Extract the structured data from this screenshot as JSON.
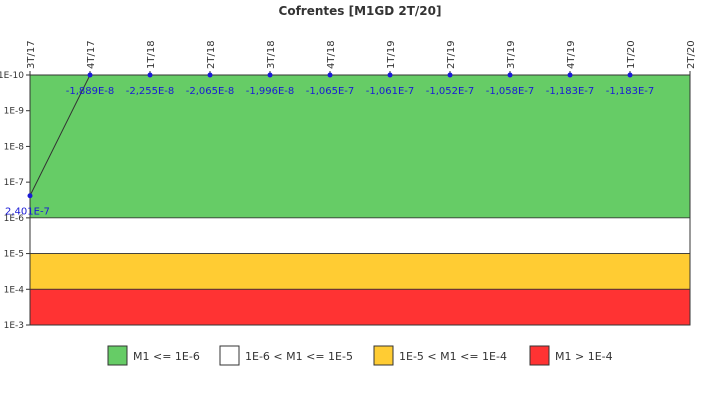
{
  "chart_data": {
    "type": "line",
    "title": "Cofrentes [M1GD 2T/20]",
    "x_ticks": [
      "3T/17",
      "4T/17",
      "1T/18",
      "2T/18",
      "3T/18",
      "4T/18",
      "1T/19",
      "2T/19",
      "3T/19",
      "4T/19",
      "1T/20",
      "2T/20"
    ],
    "y_ticks": [
      "1E-10",
      "1E-9",
      "1E-8",
      "1E-7",
      "1E-6",
      "1E-5",
      "1E-4",
      "1E-3"
    ],
    "y_scale": "log-reversed",
    "y_range": [
      1e-10,
      0.001
    ],
    "series": [
      {
        "x": [
          "3T/17",
          "4T/17",
          "1T/18",
          "2T/18",
          "3T/18",
          "4T/18",
          "1T/19",
          "2T/19",
          "3T/19",
          "4T/19",
          "1T/20"
        ],
        "values": [
          2.401e-07,
          -1.889e-08,
          -2.255e-08,
          -2.065e-08,
          -1.996e-08,
          -1.065e-07,
          -1.061e-07,
          -1.052e-07,
          -1.058e-07,
          -1.183e-07,
          -1.183e-07
        ],
        "labels": [
          "2,401E-7",
          "-1,889E-8",
          "-2,255E-8",
          "-2,065E-8",
          "-1,996E-8",
          "-1,065E-7",
          "-1,061E-7",
          "-1,052E-7",
          "-1,058E-7",
          "-1,183E-7",
          "-1,183E-7"
        ],
        "color": "#1a1ad6"
      }
    ],
    "bands": [
      {
        "label": "M1 <= 1E-6",
        "from": 1e-10,
        "to": 1e-06,
        "color": "#66cc66"
      },
      {
        "label": "1E-6 < M1 <= 1E-5",
        "from": 1e-06,
        "to": 1e-05,
        "color": "#ffffff"
      },
      {
        "label": "1E-5 < M1 <= 1E-4",
        "from": 1e-05,
        "to": 0.0001,
        "color": "#ffcc33"
      },
      {
        "label": "M1 > 1E-4",
        "from": 0.0001,
        "to": 0.001,
        "color": "#ff3333"
      }
    ],
    "legend_position": "bottom"
  }
}
